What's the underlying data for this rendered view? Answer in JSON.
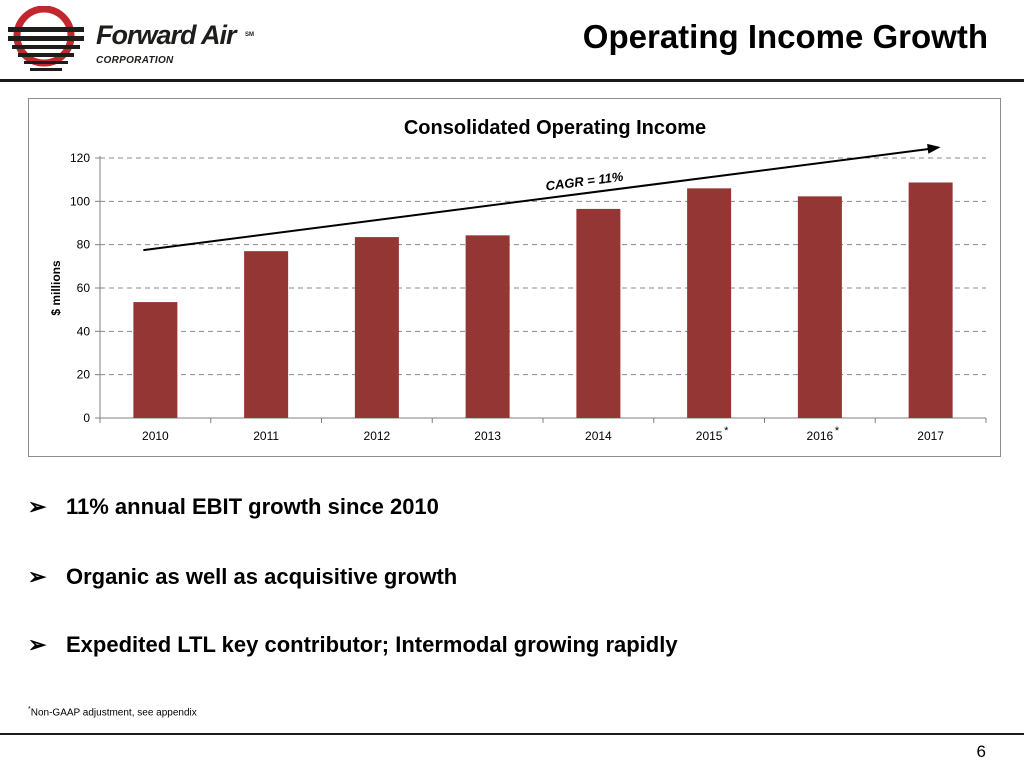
{
  "header": {
    "logo_name": "Forward Air",
    "logo_sub": "CORPORATION",
    "logo_mark": "SM",
    "title": "Operating Income Growth"
  },
  "chart_data": {
    "type": "bar",
    "title": "Consolidated Operating Income",
    "ylabel": "$ millions",
    "xlabel": "",
    "categories": [
      "2010",
      "2011",
      "2012",
      "2013",
      "2014",
      "2015",
      "2016",
      "2017"
    ],
    "category_markers": [
      "",
      "",
      "",
      "",
      "",
      "*",
      "*",
      ""
    ],
    "values": [
      53.5,
      77,
      83.5,
      84.3,
      96.5,
      106,
      102.3,
      108.7
    ],
    "ylim": [
      0,
      120
    ],
    "yticks": [
      0,
      20,
      40,
      60,
      80,
      100,
      120
    ],
    "grid": true,
    "bar_color": "#943634",
    "annotation": {
      "text": "CAGR = 11%",
      "arrow_from": {
        "x": "2010",
        "y": 77.5
      },
      "arrow_to": {
        "x": "2017",
        "y": 125
      }
    }
  },
  "bullets": [
    {
      "arrow": "➢",
      "text": "11% annual EBIT growth since 2010"
    },
    {
      "arrow": "➢",
      "text": "Organic as well as acquisitive growth"
    },
    {
      "arrow": "➢",
      "text": "Expedited LTL key contributor; Intermodal growing rapidly"
    }
  ],
  "footnote": {
    "marker": "*",
    "text": "Non-GAAP adjustment, see appendix"
  },
  "page_number": "6"
}
